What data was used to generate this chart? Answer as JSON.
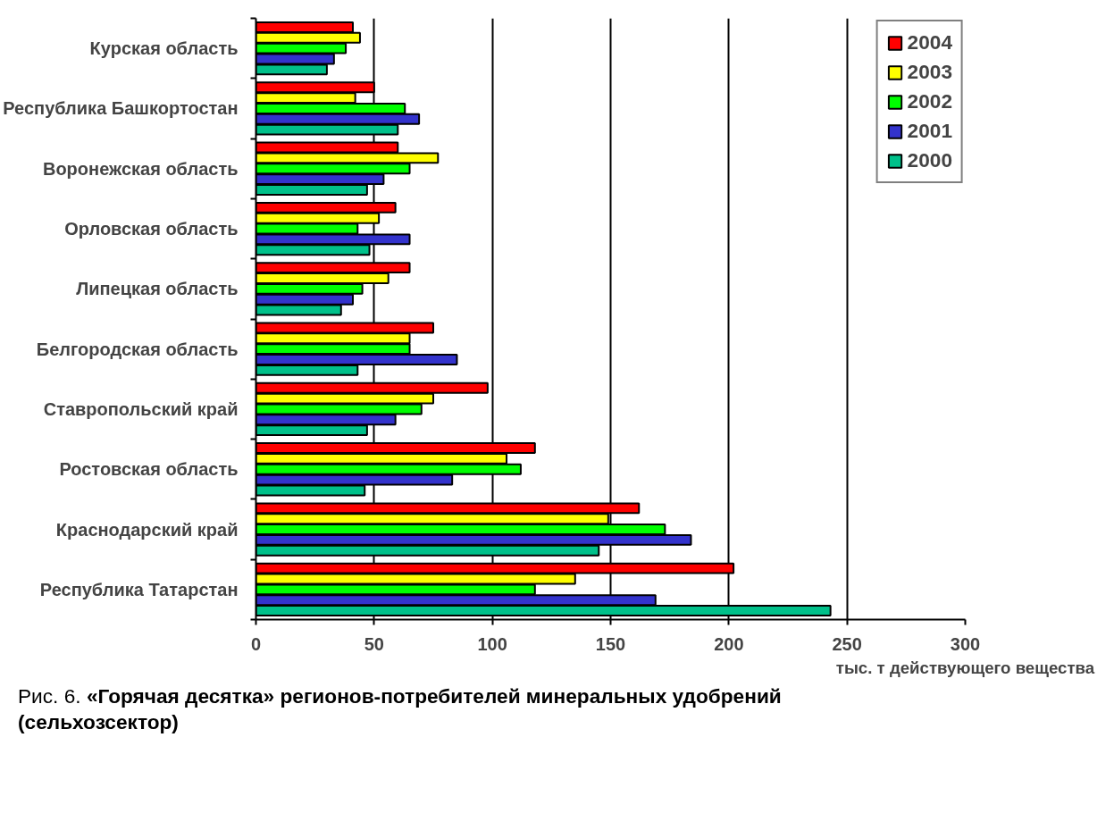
{
  "chart_data": {
    "type": "bar",
    "orientation": "horizontal",
    "categories": [
      "Курская область",
      "Республика Башкортостан",
      "Воронежская область",
      "Орловская область",
      "Липецкая область",
      "Белгородская область",
      "Ставропольский край",
      "Ростовская область",
      "Краснодарский край",
      "Республика Татарстан"
    ],
    "series": [
      {
        "name": "2004",
        "color": "#ff0000",
        "values": [
          41,
          50,
          60,
          59,
          65,
          75,
          98,
          118,
          162,
          202
        ]
      },
      {
        "name": "2003",
        "color": "#ffff00",
        "values": [
          44,
          42,
          77,
          52,
          56,
          65,
          75,
          106,
          149,
          135
        ]
      },
      {
        "name": "2002",
        "color": "#00ff00",
        "values": [
          38,
          63,
          65,
          43,
          45,
          65,
          70,
          112,
          173,
          118
        ]
      },
      {
        "name": "2001",
        "color": "#3333cc",
        "values": [
          33,
          69,
          54,
          65,
          41,
          85,
          59,
          83,
          184,
          169
        ]
      },
      {
        "name": "2000",
        "color": "#00c08a",
        "values": [
          30,
          60,
          47,
          48,
          36,
          43,
          47,
          46,
          145,
          243
        ]
      }
    ],
    "xlim": [
      0,
      300
    ],
    "xticks": [
      0,
      50,
      100,
      150,
      200,
      250,
      300
    ],
    "xlabel": "тыс. т действующего вещества",
    "grid": "x",
    "legend": "top right",
    "annotations": [
      "Рис. 6.",
      "«Горячая десятка» регионов-потребителей минеральных удобрений (сельхозсектор)"
    ]
  }
}
